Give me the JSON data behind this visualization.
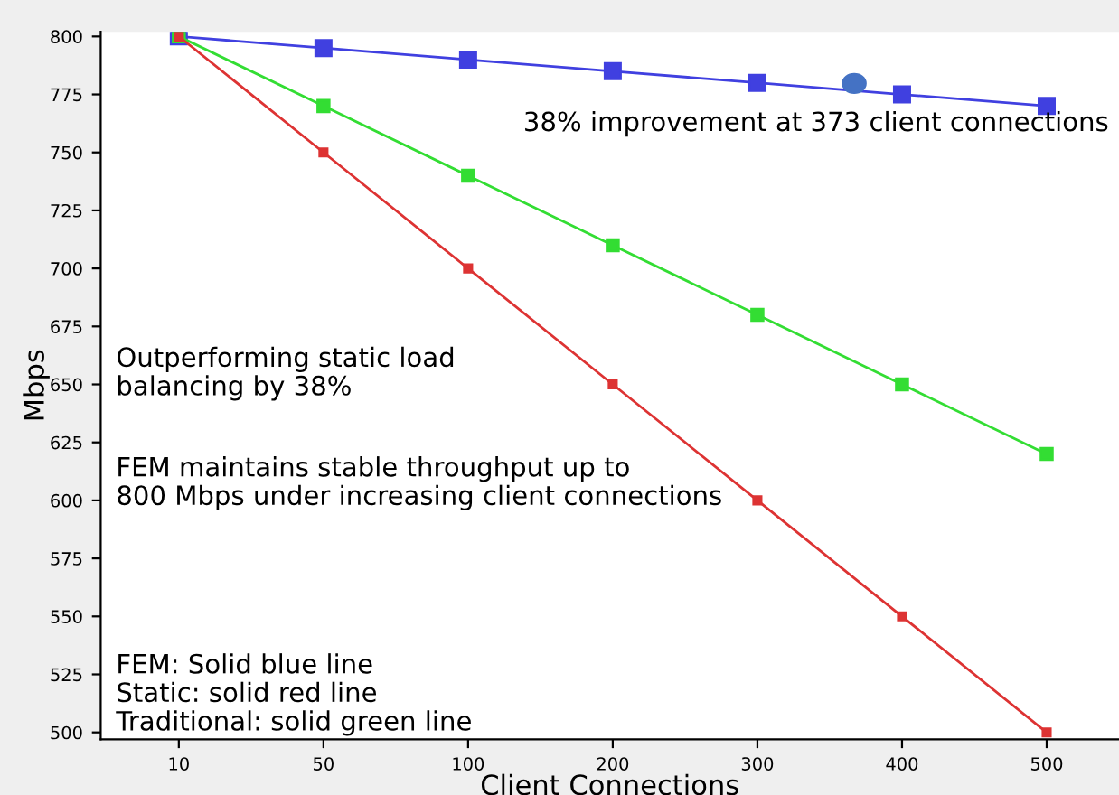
{
  "chart_data": {
    "type": "line",
    "xlabel": "Client Connections",
    "ylabel": "Mbps",
    "categories": [
      "10",
      "50",
      "100",
      "200",
      "300",
      "400",
      "500"
    ],
    "series": [
      {
        "color": "#4040e0",
        "values": [
          800,
          795,
          790,
          785,
          780,
          775,
          770
        ]
      },
      {
        "color": "#33dd33",
        "values": [
          800,
          770,
          740,
          710,
          680,
          650,
          620
        ]
      },
      {
        "color": "#dd3333",
        "values": [
          800,
          750,
          700,
          650,
          600,
          550,
          500
        ]
      }
    ],
    "ylim": [
      497,
      802
    ],
    "yticks": [
      500,
      525,
      550,
      575,
      600,
      625,
      650,
      675,
      700,
      725,
      750,
      775,
      800
    ],
    "marker": "square",
    "line_style": "solid",
    "grid": false,
    "legend": false,
    "annotations": [
      "38% improvement at 373 client connections",
      "Outperforming static load\nbalancing by 38%",
      "FEM maintains stable throughput up to\n800 Mbps under increasing client connections",
      "FEM: Solid blue line\nStatic: solid red line\nTraditional: solid green line"
    ]
  }
}
